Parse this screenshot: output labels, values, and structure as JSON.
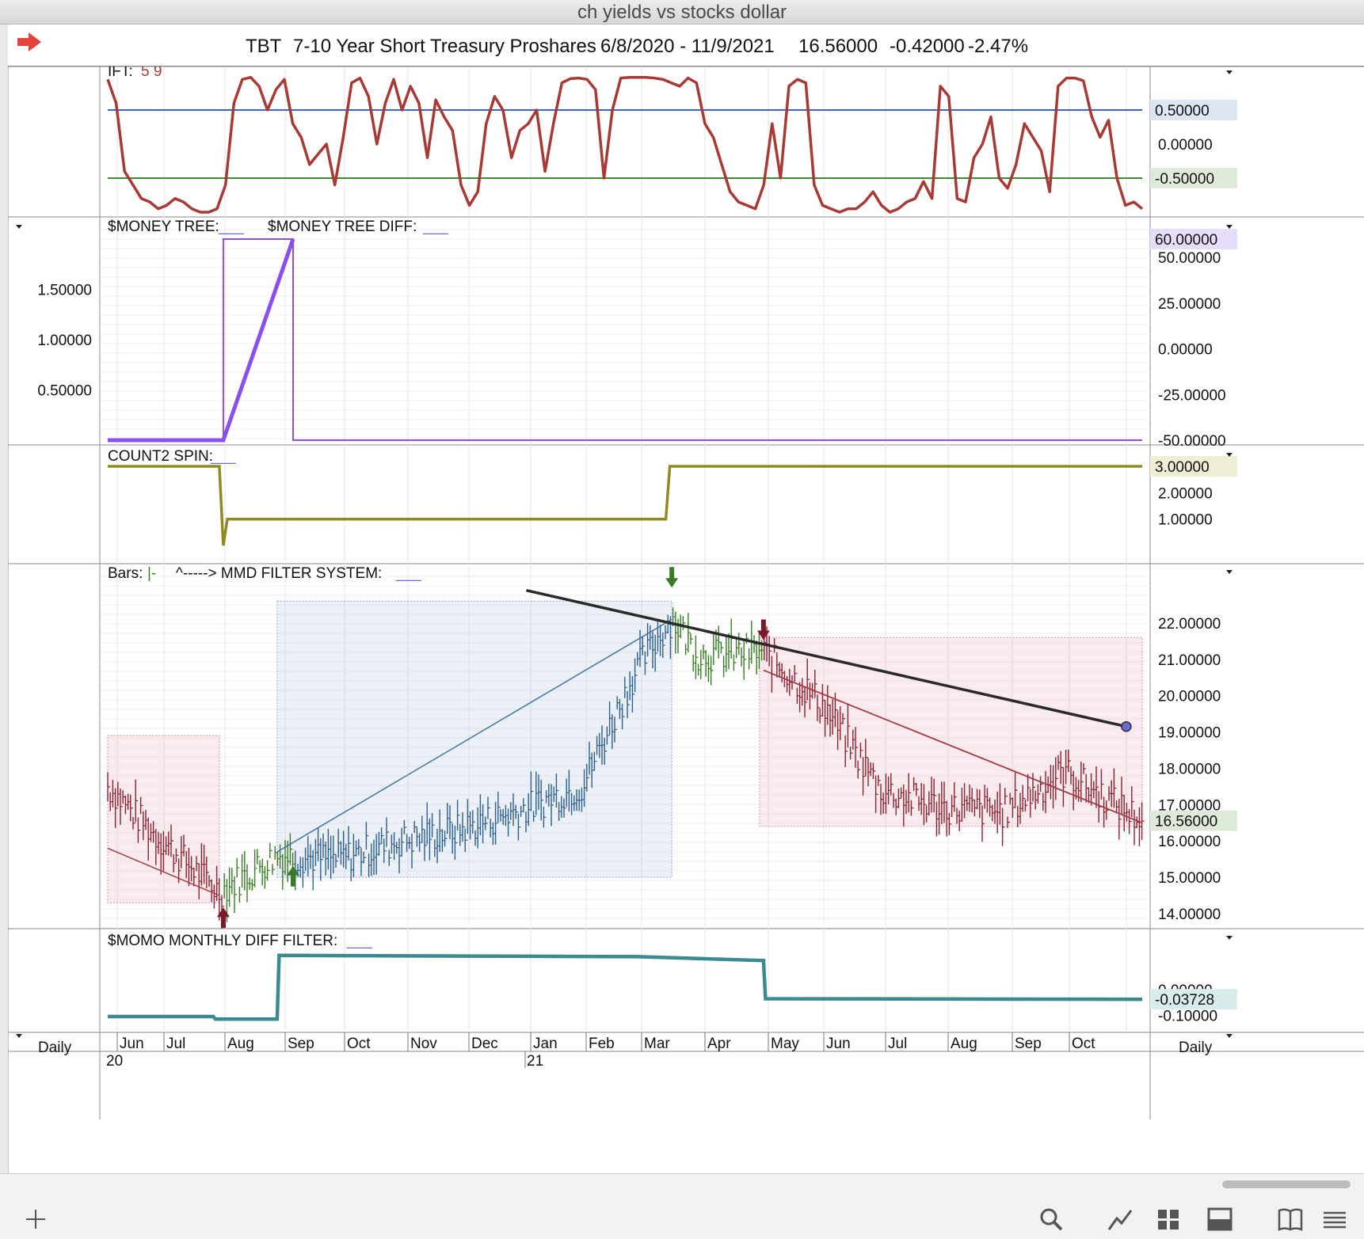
{
  "window_title": "ch yields vs stocks dollar",
  "header": {
    "symbol": "TBT",
    "name": "7-10 Year Short Treasury Proshares",
    "date_range": "6/8/2020 - 11/9/2021",
    "last": "16.56000",
    "change": "-0.42000",
    "pct_change": "-2.47%"
  },
  "panels": {
    "ift": {
      "label": "IFT:",
      "params": "5 9",
      "ticks": [
        "0.50000",
        "0.00000",
        "-0.50000"
      ],
      "highlight_ticks": [
        "0.50000",
        "-0.50000"
      ]
    },
    "money_tree": {
      "label1": "$MONEY TREE:",
      "label2": "$MONEY TREE DIFF:",
      "blank": "___",
      "left_ticks": [
        "1.50000",
        "1.00000",
        "0.50000"
      ],
      "right_ticks": [
        "50.00000",
        "25.00000",
        "0.00000",
        "-25.00000",
        "-50.00000"
      ],
      "badge": "60.00000"
    },
    "count2": {
      "label": "COUNT2 SPIN:",
      "blank": "___",
      "ticks": [
        "3.00000",
        "2.00000",
        "1.00000"
      ],
      "badge": "3.00000"
    },
    "price": {
      "label_bars": "Bars:",
      "bars_glyph": "|-",
      "label_sys": "^-----> MMD FILTER SYSTEM:",
      "blank": "___",
      "ticks": [
        "22.00000",
        "21.00000",
        "20.00000",
        "19.00000",
        "18.00000",
        "17.00000",
        "16.00000",
        "15.00000",
        "14.00000"
      ],
      "badge": "16.56000"
    },
    "momo": {
      "label": "$MOMO MONTHLY DIFF FILTER:",
      "blank": "___",
      "ticks": [
        "0.00000",
        "-0.10000"
      ],
      "badge": "-0.03728"
    }
  },
  "xaxis": {
    "months": [
      "Jun",
      "Jul",
      "Aug",
      "Sep",
      "Oct",
      "Nov",
      "Dec",
      "Jan",
      "Feb",
      "Mar",
      "Apr",
      "May",
      "Jun",
      "Jul",
      "Aug",
      "Sep",
      "Oct"
    ],
    "year_labels": [
      "20",
      "21"
    ],
    "period_left": "Daily",
    "period_right": "Daily"
  },
  "colors": {
    "ift_line": "#a83a35",
    "level_high": "#3f66a8",
    "level_low": "#3b8a2e",
    "money_tree": "#8a4ff0",
    "count2": "#8e8a24",
    "momo": "#3b8a8f",
    "bull_bars": "#3a7a28",
    "bear_bars": "#8a2030",
    "neutral_bars": "#2e5f8e",
    "trendline": "#2a2a2a"
  },
  "toolbar": [
    "plus-icon",
    "search-icon",
    "chart-line-icon",
    "grid-icon",
    "window-icon",
    "book-icon",
    "menu-icon"
  ],
  "chart_data": [
    {
      "type": "line",
      "title": "IFT: 5 9",
      "ylim": [
        -1,
        1
      ],
      "levels": [
        0.5,
        -0.5
      ],
      "series": [
        {
          "name": "IFT",
          "values": [
            0.95,
            0.6,
            -0.4,
            -0.6,
            -0.8,
            -0.85,
            -0.95,
            -0.9,
            -0.8,
            -0.85,
            -0.95,
            -1,
            -1,
            -0.95,
            -0.6,
            0.6,
            0.95,
            0.98,
            0.85,
            0.5,
            0.8,
            0.95,
            0.3,
            0.1,
            -0.3,
            -0.15,
            0.0,
            -0.6,
            0.1,
            0.9,
            0.97,
            0.7,
            0.0,
            0.6,
            0.95,
            0.5,
            0.85,
            0.6,
            -0.2,
            0.65,
            0.4,
            0.2,
            -0.6,
            -0.9,
            -0.7,
            0.3,
            0.7,
            0.5,
            -0.2,
            0.2,
            0.3,
            0.5,
            -0.4,
            0.3,
            0.9,
            0.96,
            0.97,
            0.95,
            0.8,
            -0.5,
            0.5,
            0.97,
            0.98,
            0.98,
            0.98,
            0.97,
            0.95,
            0.9,
            0.85,
            0.97,
            0.9,
            0.3,
            0.1,
            -0.3,
            -0.7,
            -0.85,
            -0.9,
            -0.95,
            -0.6,
            0.3,
            -0.5,
            0.85,
            0.95,
            0.9,
            -0.6,
            -0.9,
            -0.95,
            -1,
            -0.95,
            -0.95,
            -0.85,
            -0.7,
            -0.9,
            -1,
            -0.95,
            -0.85,
            -0.8,
            -0.55,
            -0.8,
            0.85,
            0.7,
            -0.8,
            -0.85,
            -0.2,
            0.0,
            0.4,
            -0.5,
            -0.65,
            -0.3,
            0.3,
            0.1,
            -0.1,
            -0.7,
            0.85,
            0.97,
            0.97,
            0.93,
            0.4,
            0.1,
            0.35,
            -0.5,
            -0.9,
            -0.85,
            -0.95
          ]
        }
      ]
    },
    {
      "type": "line",
      "title": "$MONEY TREE / $MONEY TREE DIFF",
      "series": [
        {
          "name": "$MONEY TREE DIFF",
          "x": [
            "6/8/2020",
            "8/5/2020",
            "8/5/2020",
            "9/9/2020",
            "9/9/2020",
            "11/9/2021"
          ],
          "values": [
            -50,
            -50,
            60,
            60,
            -50,
            -50
          ]
        },
        {
          "name": "$MONEY TREE",
          "x": [
            "6/8/2020",
            "8/5/2020",
            "9/9/2020"
          ],
          "values": [
            0,
            0,
            2.0
          ]
        }
      ],
      "ylim_left": [
        0,
        2.0
      ],
      "ylim_right": [
        -50,
        60
      ]
    },
    {
      "type": "line",
      "title": "COUNT2 SPIN",
      "series": [
        {
          "name": "COUNT2 SPIN",
          "x": [
            "6/8/2020",
            "8/3/2020",
            "8/5/2020",
            "8/7/2020",
            "3/15/2021",
            "3/17/2021",
            "11/9/2021"
          ],
          "values": [
            3,
            3,
            0,
            1,
            1,
            3,
            3
          ]
        }
      ],
      "ylim": [
        0,
        3
      ]
    },
    {
      "type": "bar",
      "title": "TBT",
      "ylim": [
        14.0,
        22.5
      ],
      "series": [
        {
          "name": "TBT",
          "x": [
            "6/8/2020",
            "7/1/2020",
            "8/3/2020",
            "9/1/2020",
            "10/1/2020",
            "11/2/2020",
            "12/1/2020",
            "1/4/2021",
            "2/1/2021",
            "3/1/2021",
            "3/18/2021",
            "4/1/2021",
            "5/3/2021",
            "6/1/2021",
            "7/1/2021",
            "8/2/2021",
            "9/1/2021",
            "10/1/2021",
            "11/9/2021"
          ],
          "values": [
            17.5,
            16.2,
            14.6,
            15.6,
            15.5,
            16.0,
            16.3,
            16.9,
            17.5,
            20.8,
            22.1,
            21.1,
            21.2,
            19.8,
            17.4,
            16.9,
            16.8,
            17.9,
            16.56
          ]
        }
      ],
      "regions": [
        {
          "from": "6/8/2020",
          "to": "8/3/2020",
          "low": 14.3,
          "high": 18.9,
          "state": "bear"
        },
        {
          "from": "9/1/2020",
          "to": "3/18/2021",
          "low": 15.0,
          "high": 22.6,
          "state": "neutral"
        },
        {
          "from": "5/1/2021",
          "to": "11/9/2021",
          "low": 16.4,
          "high": 21.6,
          "state": "bear"
        }
      ],
      "trendline": {
        "from_x": "1/4/2021",
        "from_y": 22.9,
        "to_x": "11/1/2021",
        "to_y": 19.15
      }
    },
    {
      "type": "line",
      "title": "$MOMO MONTHLY DIFF FILTER",
      "series": [
        {
          "name": "$MOMO MONTHLY DIFF FILTER",
          "x": [
            "6/8/2020",
            "7/31/2020",
            "8/1/2020",
            "9/1/2020",
            "9/2/2020",
            "3/1/2021",
            "5/3/2021",
            "5/4/2021",
            "11/9/2021"
          ],
          "values": [
            -0.105,
            -0.105,
            -0.115,
            -0.115,
            0.135,
            0.13,
            0.115,
            -0.035,
            -0.03728
          ]
        }
      ],
      "ylim": [
        -0.13,
        0.15
      ]
    }
  ]
}
